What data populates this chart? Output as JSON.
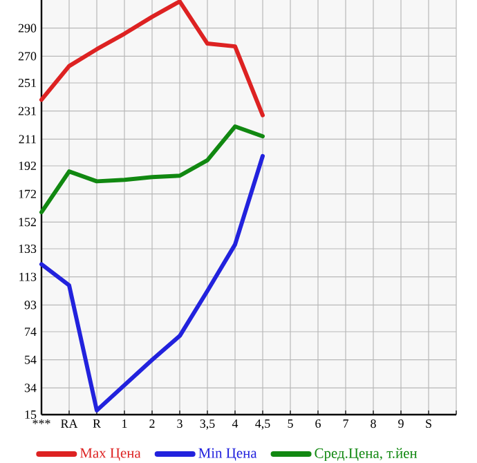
{
  "chart_data": {
    "type": "line",
    "categories": [
      "***",
      "RA",
      "R",
      "1",
      "2",
      "3",
      "3,5",
      "4",
      "4,5",
      "5",
      "6",
      "7",
      "8",
      "9",
      "S"
    ],
    "ylim": [
      15,
      310
    ],
    "yticks": [
      15,
      34,
      54,
      74,
      93,
      113,
      133,
      152,
      172,
      192,
      211,
      231,
      251,
      270,
      290
    ],
    "grid": true,
    "legend": "bottom",
    "marker": "none",
    "line_style": "solid",
    "series": [
      {
        "name": "Max Цена",
        "color": "#dd2222",
        "values": [
          239,
          263,
          275,
          286,
          298,
          309,
          279,
          277,
          228,
          null,
          null,
          null,
          null,
          null,
          null
        ]
      },
      {
        "name": "Min Цена",
        "color": "#2222dd",
        "values": [
          122,
          107,
          18,
          36,
          54,
          71,
          103,
          136,
          199,
          null,
          null,
          null,
          null,
          null,
          null
        ]
      },
      {
        "name": "Сред.Цена, т.йен",
        "color": "#118811",
        "values": [
          159,
          188,
          181,
          182,
          184,
          185,
          196,
          220,
          213,
          null,
          null,
          null,
          null,
          null,
          null
        ]
      }
    ]
  }
}
